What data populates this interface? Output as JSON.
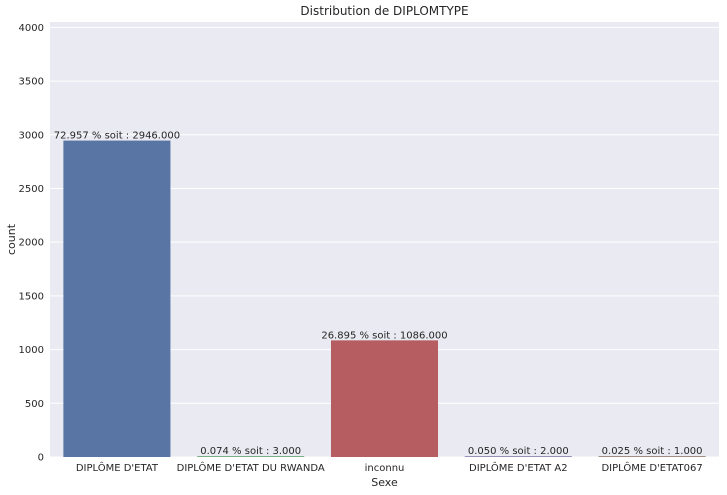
{
  "chart_data": {
    "type": "bar",
    "title": "Distribution de DIPLOMTYPE",
    "xlabel": "Sexe",
    "ylabel": "count",
    "categories": [
      "DIPLÔME D'ETAT",
      "DIPLÔME D'ETAT DU RWANDA",
      "inconnu",
      "DIPLÔME D'ETAT A2",
      "DIPLÔME D'ETAT067"
    ],
    "values": [
      2946,
      3,
      1086,
      2,
      1
    ],
    "data_labels": [
      "72.957 % soit : 2946.000",
      "0.074 % soit : 3.000",
      "26.895 % soit : 1086.000",
      "0.050 % soit : 2.000",
      "0.025 % soit : 1.000"
    ],
    "colors": [
      "#5875a4",
      "#5f9e6e",
      "#b55d60",
      "#857aab",
      "#8d7866"
    ],
    "ylim": [
      0,
      4050
    ],
    "yticks": [
      0,
      500,
      1000,
      1500,
      2000,
      2500,
      3000,
      3500,
      4000
    ],
    "grid": true,
    "background": "#eaeaf2"
  }
}
